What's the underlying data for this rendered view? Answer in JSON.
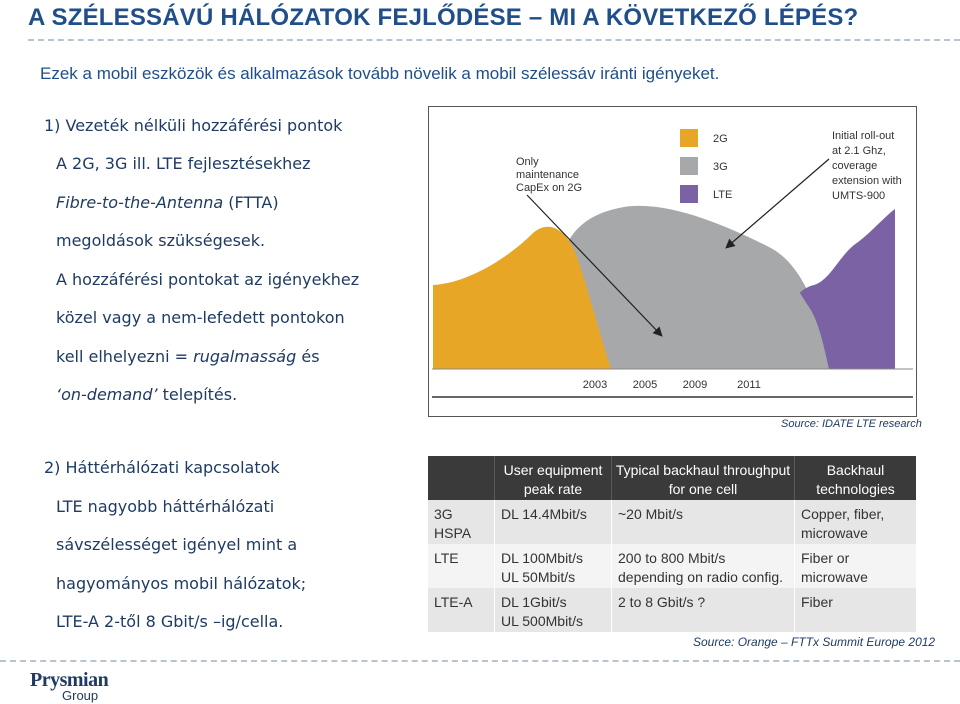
{
  "slide": {
    "title": "A SZÉLESSÁVÚ HÁLÓZATOK FEJLŐDÉSE – MI A KÖVETKEZŐ LÉPÉS?",
    "subtitle": "Ezek a mobil eszközök és alkalmazások tovább növelik a mobil szélessáv iránti igényeket."
  },
  "section1": {
    "heading": "1) Vezeték nélküli hozzáférési pontok",
    "line1": "A 2G, 3G ill. LTE fejlesztésekhez",
    "line2_italic": "Fibre-to-the-Antenna",
    "line2_rest": " (FTTA)",
    "line3": "megoldások szükségesek.",
    "line4": "A hozzáférési pontokat az igényekhez",
    "line5": "közel vagy a nem-lefedett pontokon",
    "line6_start": "kell elhelyezni = ",
    "line6_italic": "rugalmasság",
    "line6_end": " és",
    "line7_italic": "‘on-demand’",
    "line7_rest": " telepítés."
  },
  "section2": {
    "heading": "2) Háttérhálózati kapcsolatok",
    "line1": "LTE nagyobb háttérhálózati",
    "line2": "sávszélességet igényel mint a",
    "line3": "hagyományos mobil hálózatok;",
    "line4": "LTE-A 2-től 8 Gbit/s –ig/cella."
  },
  "chart_data": {
    "type": "area",
    "legend": [
      "2G",
      "3G",
      "LTE"
    ],
    "legend_position": "top-right",
    "colors": {
      "2G": "#e8a627",
      "3G": "#a7a8aa",
      "LTE": "#7b62a5"
    },
    "x_ticks": [
      "2003",
      "2005",
      "2009",
      "2011"
    ],
    "annotations": {
      "left": [
        "Only",
        "maintenance",
        "CapEx on 2G"
      ],
      "right": [
        "Initial roll-out",
        "at 2.1 Ghz,",
        "coverage",
        "extension with",
        "UMTS-900"
      ]
    },
    "source": "Source: IDATE LTE research"
  },
  "table": {
    "headers": [
      "",
      "User equipment|peak rate",
      "Typical backhaul throughput|for one cell",
      "Backhaul|technologies"
    ],
    "rows": [
      [
        "3G|HSPA",
        "DL 14.4Mbit/s",
        "~20 Mbit/s",
        "Copper, fiber,|microwave"
      ],
      [
        "LTE",
        "DL 100Mbit/s|UL 50Mbit/s",
        "200 to 800 Mbit/s|depending on radio config.",
        "Fiber or|microwave"
      ],
      [
        "LTE-A",
        "DL 1Gbit/s|UL 500Mbit/s",
        "2 to 8 Gbit/s ?",
        "Fiber"
      ]
    ],
    "source": "Source: Orange – FTTx Summit Europe 2012"
  },
  "logo": {
    "main": "Prysmian",
    "sub": "Group"
  }
}
